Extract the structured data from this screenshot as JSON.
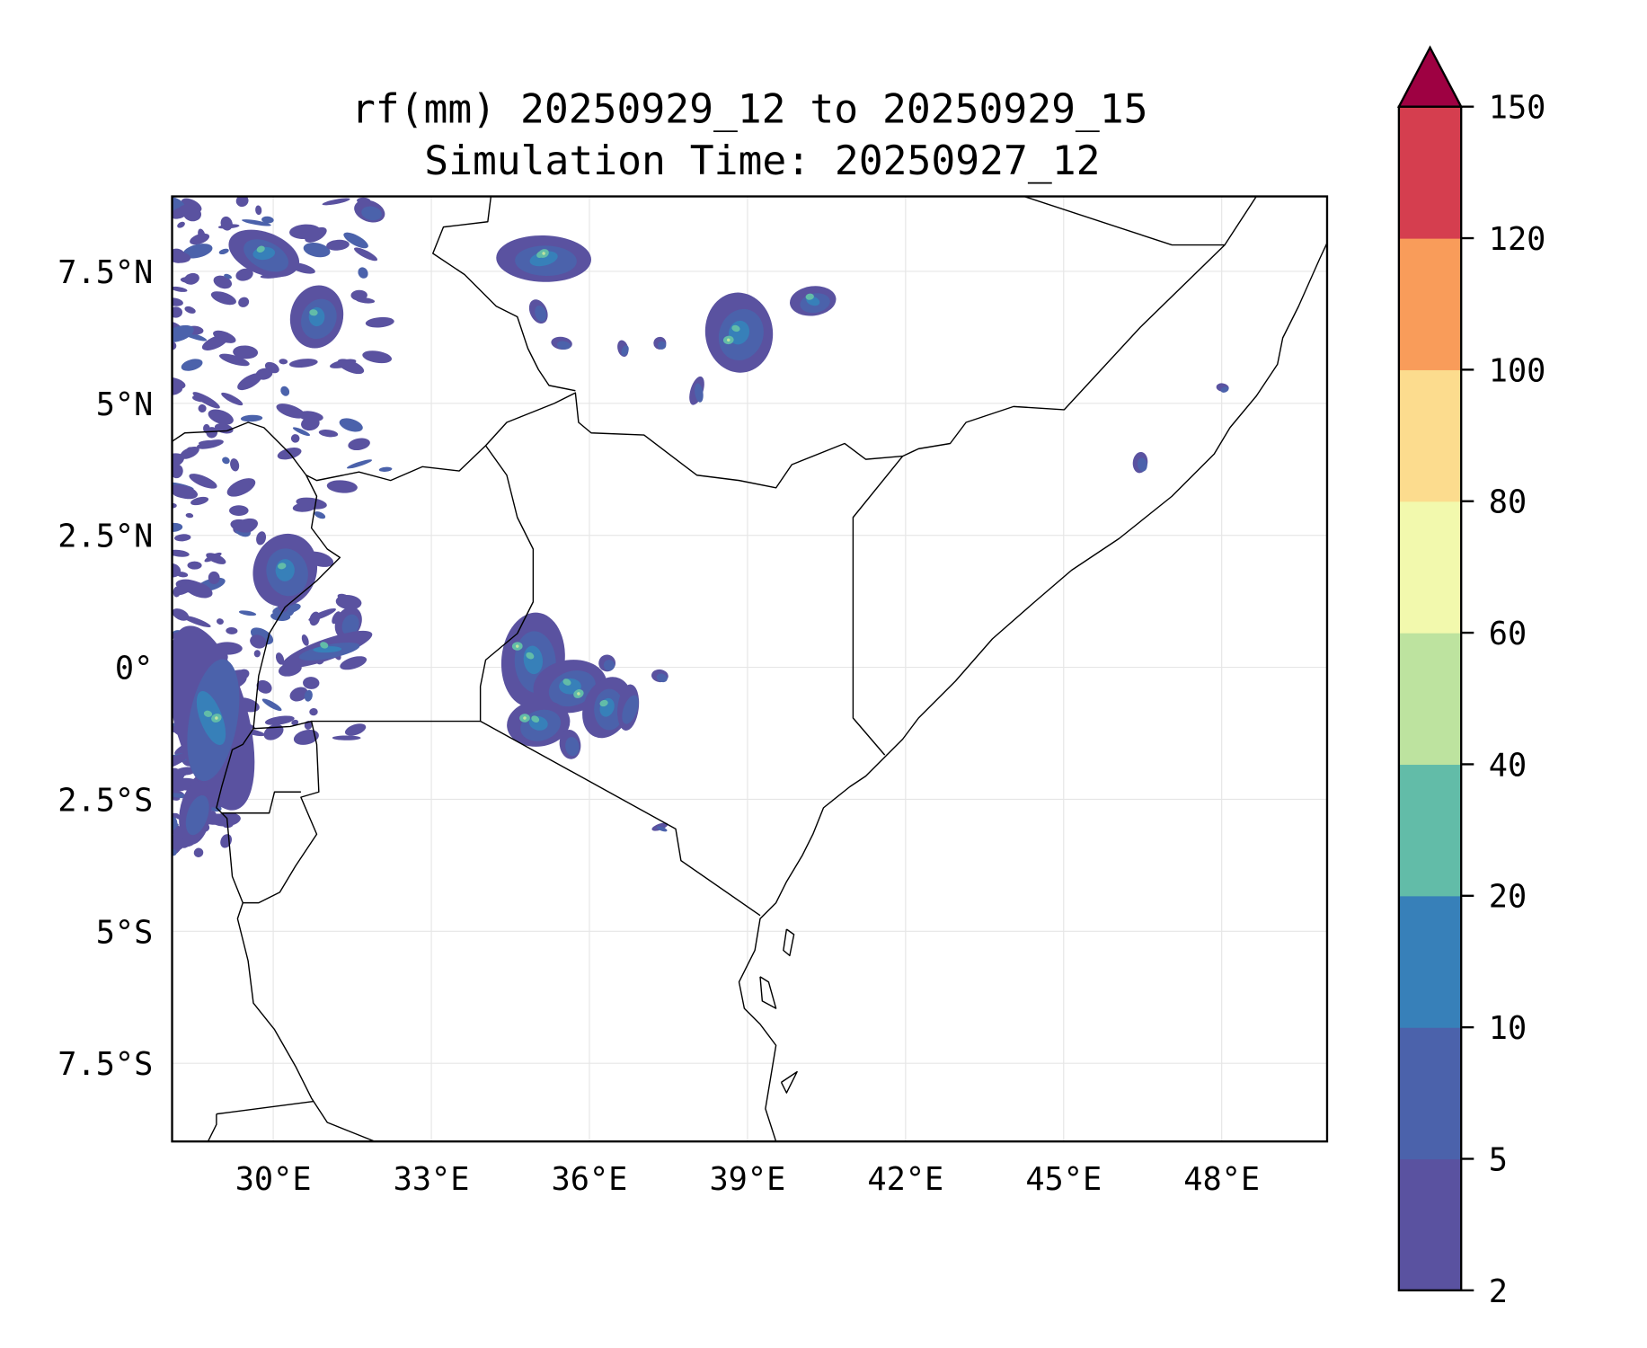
{
  "title": {
    "line1": "rf(mm) 20250929_12 to 20250929_15",
    "line2": "Simulation Time: 20250927_12"
  },
  "map": {
    "lon_range": [
      28.08,
      50.0
    ],
    "lat_range": [
      -8.98,
      8.92
    ],
    "x_ticks": [
      {
        "value": 30,
        "label": "30°E"
      },
      {
        "value": 33,
        "label": "33°E"
      },
      {
        "value": 36,
        "label": "36°E"
      },
      {
        "value": 39,
        "label": "39°E"
      },
      {
        "value": 42,
        "label": "42°E"
      },
      {
        "value": 45,
        "label": "45°E"
      },
      {
        "value": 48,
        "label": "48°E"
      }
    ],
    "y_ticks": [
      {
        "value": 7.5,
        "label": "7.5°N"
      },
      {
        "value": 5,
        "label": "5°N"
      },
      {
        "value": 2.5,
        "label": "2.5°N"
      },
      {
        "value": 0,
        "label": "0°"
      },
      {
        "value": -2.5,
        "label": "2.5°S"
      },
      {
        "value": -5,
        "label": "5°S"
      },
      {
        "value": -7.5,
        "label": "7.5°S"
      }
    ]
  },
  "colorbar": {
    "levels": [
      "2",
      "5",
      "10",
      "20",
      "40",
      "60",
      "80",
      "100",
      "120",
      "150"
    ],
    "colors": [
      "#5a52a0",
      "#4b62ab",
      "#3780b9",
      "#62bca8",
      "#bde39f",
      "#f2f9ad",
      "#fcdc8e",
      "#f99c5a",
      "#d53e4f"
    ],
    "extend_color": "#9e0142"
  }
}
